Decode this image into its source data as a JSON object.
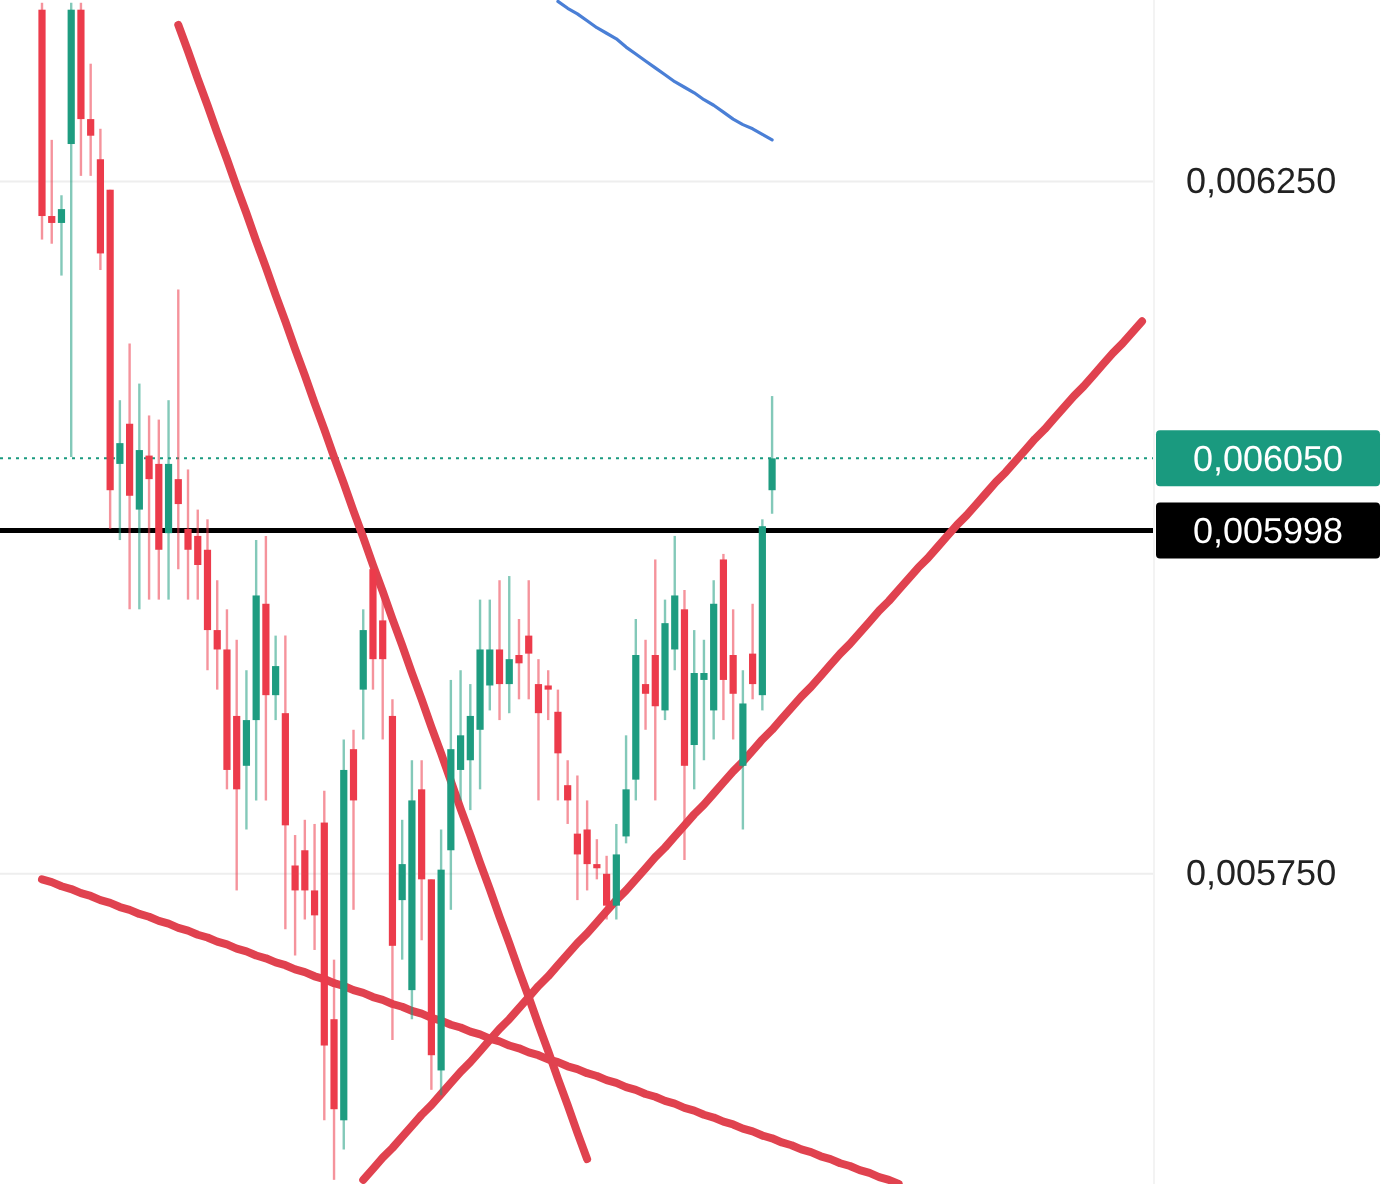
{
  "chart_data": {
    "type": "candlestick",
    "categories": [
      null,
      null,
      null,
      null,
      null,
      null,
      null,
      null,
      null,
      null,
      null,
      null,
      null,
      null,
      null,
      null,
      null,
      null,
      null,
      null,
      null,
      null,
      null,
      null,
      null,
      null,
      null,
      null,
      null,
      null,
      null,
      null,
      null,
      null,
      null,
      null,
      null,
      null,
      null,
      null,
      null,
      null,
      null,
      null,
      null,
      null,
      null,
      null,
      null,
      null,
      null,
      null,
      null,
      null,
      null,
      null,
      null,
      null,
      null,
      null,
      null,
      null,
      null,
      null,
      null,
      null,
      null,
      null,
      null,
      null,
      null,
      null,
      null,
      null,
      null,
      null,
      null,
      null,
      null,
      null,
      null,
      null,
      null,
      null,
      null,
      null,
      null,
      null,
      null,
      null,
      null,
      null,
      null,
      null,
      null,
      null,
      null,
      null,
      null,
      null,
      null,
      null,
      null,
      null,
      null,
      null,
      null,
      null,
      null,
      null,
      null,
      null,
      null,
      null
    ],
    "ohlc": [
      [
        0.006374,
        0.006379,
        0.006208,
        0.006225
      ],
      [
        0.006225,
        0.00628,
        0.006205,
        0.00622
      ],
      [
        0.00622,
        0.00624,
        0.006182,
        0.00623
      ],
      [
        0.006277,
        0.006379,
        0.006051,
        0.006374
      ],
      [
        0.006374,
        0.006379,
        0.006254,
        0.006295
      ],
      [
        0.006295,
        0.006335,
        0.006254,
        0.006283
      ],
      [
        0.006266,
        0.006288,
        0.006186,
        0.006198
      ],
      [
        0.006244,
        0.006244,
        0.005999,
        0.006027
      ],
      [
        0.006046,
        0.006092,
        0.005991,
        0.006061
      ],
      [
        0.006075,
        0.006133,
        0.005941,
        0.006023
      ],
      [
        0.006013,
        0.006104,
        0.005941,
        0.006056
      ],
      [
        0.006052,
        0.006081,
        0.005948,
        0.006035
      ],
      [
        0.006046,
        0.006078,
        0.005948,
        0.005984
      ],
      [
        0.005996,
        0.006092,
        0.005948,
        0.006046
      ],
      [
        0.006035,
        0.006172,
        0.00597,
        0.006017
      ],
      [
        0.005999,
        0.006042,
        0.005948,
        0.005984
      ],
      [
        0.005994,
        0.006013,
        0.005948,
        0.005973
      ],
      [
        0.005984,
        0.006006,
        0.005897,
        0.005926
      ],
      [
        0.005926,
        0.005962,
        0.005883,
        0.005912
      ],
      [
        0.005912,
        0.005941,
        0.005811,
        0.005825
      ],
      [
        0.005864,
        0.005919,
        0.005738,
        0.005811
      ],
      [
        0.005828,
        0.005897,
        0.005782,
        0.005861
      ],
      [
        0.005861,
        0.005991,
        0.005803,
        0.005951
      ],
      [
        0.005945,
        0.005994,
        0.005803,
        0.005879
      ],
      [
        0.005879,
        0.005922,
        0.005861,
        0.0059
      ],
      [
        0.005866,
        0.005922,
        0.00571,
        0.005785
      ],
      [
        0.005756,
        0.005778,
        0.005691,
        0.005738
      ],
      [
        0.005767,
        0.005789,
        0.005717,
        0.005738
      ],
      [
        0.005738,
        0.005786,
        0.005695,
        0.00572
      ],
      [
        0.005787,
        0.00581,
        0.005572,
        0.005626
      ],
      [
        0.005645,
        0.005688,
        0.005529,
        0.00558
      ],
      [
        0.005572,
        0.005847,
        0.005551,
        0.005825
      ],
      [
        0.00584,
        0.005854,
        0.005724,
        0.005803
      ],
      [
        0.005883,
        0.005941,
        0.005847,
        0.005926
      ],
      [
        0.00597,
        0.00597,
        0.005883,
        0.005905
      ],
      [
        0.005933,
        0.005948,
        0.005847,
        0.005905
      ],
      [
        0.005864,
        0.005876,
        0.00563,
        0.005698
      ],
      [
        0.005731,
        0.005789,
        0.005688,
        0.005757
      ],
      [
        0.005666,
        0.005832,
        0.005645,
        0.005803
      ],
      [
        0.005811,
        0.005832,
        0.005702,
        0.005746
      ],
      [
        0.005746,
        0.005746,
        0.005594,
        0.005619
      ],
      [
        0.005608,
        0.005782,
        0.00559,
        0.005753
      ],
      [
        0.005767,
        0.00589,
        0.005724,
        0.00584
      ],
      [
        0.005825,
        0.005897,
        0.005803,
        0.00585
      ],
      [
        0.005832,
        0.005887,
        0.005796,
        0.005864
      ],
      [
        0.005854,
        0.005948,
        0.005811,
        0.005912
      ],
      [
        0.005886,
        0.005948,
        0.005868,
        0.005912
      ],
      [
        0.005912,
        0.005962,
        0.005861,
        0.005887
      ],
      [
        0.005887,
        0.005965,
        0.005866,
        0.005905
      ],
      [
        0.005908,
        0.005934,
        0.005876,
        0.005902
      ],
      [
        0.005922,
        0.005962,
        0.005876,
        0.005909
      ],
      [
        0.005887,
        0.005905,
        0.005803,
        0.005866
      ],
      [
        0.005886,
        0.005897,
        0.005861,
        0.005883
      ],
      [
        0.005867,
        0.005883,
        0.005803,
        0.005837
      ],
      [
        0.005814,
        0.005832,
        0.005786,
        0.005803
      ],
      [
        0.005779,
        0.005821,
        0.005731,
        0.005764
      ],
      [
        0.005782,
        0.005803,
        0.005738,
        0.005757
      ],
      [
        0.005757,
        0.005775,
        0.005746,
        0.005754
      ],
      [
        0.00575,
        0.005763,
        0.005717,
        0.005727
      ],
      [
        0.005727,
        0.005786,
        0.005717,
        0.005764
      ],
      [
        0.005777,
        0.00585,
        0.005772,
        0.005811
      ],
      [
        0.005818,
        0.005934,
        0.005803,
        0.005908
      ],
      [
        0.005887,
        0.005919,
        0.005854,
        0.00588
      ],
      [
        0.005908,
        0.005977,
        0.005803,
        0.005871
      ],
      [
        0.005868,
        0.005948,
        0.005861,
        0.005931
      ],
      [
        0.005912,
        0.005994,
        0.005897,
        0.005951
      ],
      [
        0.005941,
        0.005955,
        0.00576,
        0.005828
      ],
      [
        0.005843,
        0.005926,
        0.005811,
        0.005895
      ],
      [
        0.00589,
        0.005919,
        0.005832,
        0.005895
      ],
      [
        0.005868,
        0.005962,
        0.005847,
        0.005945
      ],
      [
        0.005977,
        0.005981,
        0.005861,
        0.00589
      ],
      [
        0.005908,
        0.005941,
        0.005847,
        0.00588
      ],
      [
        0.005828,
        0.005897,
        0.005782,
        0.005873
      ],
      [
        0.005909,
        0.005945,
        0.005876,
        0.005887
      ],
      [
        0.005879,
        0.006006,
        0.005868,
        0.006001
      ],
      [
        0.006027,
        0.006095,
        0.00601,
        0.00605
      ],
      null,
      null,
      null,
      null,
      null,
      null,
      null,
      null,
      null,
      null,
      null,
      null,
      null,
      null,
      null,
      null,
      null,
      null,
      null,
      null,
      null,
      null,
      null,
      null,
      null,
      null,
      null,
      null,
      null,
      null,
      null,
      null,
      null,
      null,
      null,
      null,
      null,
      null
    ],
    "colors": [
      "#ec3b4b",
      "#ec3b4b",
      "#1e9c80",
      "#1e9c80",
      "#ec3b4b",
      "#ec3b4b",
      "#ec3b4b",
      "#ec3b4b",
      "#1e9c80",
      "#ec3b4b",
      "#1e9c80",
      "#ec3b4b",
      "#ec3b4b",
      "#1e9c80",
      "#ec3b4b",
      "#ec3b4b",
      "#ec3b4b",
      "#ec3b4b",
      "#ec3b4b",
      "#ec3b4b",
      "#ec3b4b",
      "#1e9c80",
      "#1e9c80",
      "#ec3b4b",
      "#1e9c80",
      "#ec3b4b",
      "#ec3b4b",
      "#ec3b4b",
      "#ec3b4b",
      "#ec3b4b",
      "#ec3b4b",
      "#1e9c80",
      "#ec3b4b",
      "#1e9c80",
      "#ec3b4b",
      "#ec3b4b",
      "#ec3b4b",
      "#1e9c80",
      "#1e9c80",
      "#ec3b4b",
      "#ec3b4b",
      "#1e9c80",
      "#1e9c80",
      "#1e9c80",
      "#1e9c80",
      "#1e9c80",
      "#1e9c80",
      "#ec3b4b",
      "#1e9c80",
      "#ec3b4b",
      "#ec3b4b",
      "#ec3b4b",
      "#ec3b4b",
      "#ec3b4b",
      "#ec3b4b",
      "#ec3b4b",
      "#ec3b4b",
      "#ec3b4b",
      "#ec3b4b",
      "#1e9c80",
      "#1e9c80",
      "#1e9c80",
      "#ec3b4b",
      "#ec3b4b",
      "#1e9c80",
      "#1e9c80",
      "#ec3b4b",
      "#1e9c80",
      "#1e9c80",
      "#1e9c80",
      "#ec3b4b",
      "#ec3b4b",
      "#1e9c80",
      "#ec3b4b",
      "#1e9c80",
      "#1e9c80",
      null,
      null,
      null,
      null,
      null,
      null,
      null,
      null,
      null,
      null,
      null,
      null,
      null,
      null,
      null,
      null,
      null,
      null,
      null,
      null,
      null,
      null,
      null,
      null,
      null,
      null,
      null,
      null,
      null,
      null,
      null,
      null,
      null,
      null,
      null,
      null,
      null,
      null
    ],
    "series": [
      {
        "type": "line",
        "color": "#4a7fd6",
        "values": [
          null,
          null,
          null,
          null,
          null,
          null,
          null,
          null,
          null,
          null,
          null,
          null,
          null,
          null,
          null,
          null,
          null,
          null,
          null,
          null,
          null,
          null,
          null,
          null,
          null,
          null,
          null,
          null,
          null,
          null,
          null,
          null,
          null,
          null,
          null,
          null,
          null,
          null,
          null,
          null,
          null,
          null,
          null,
          null,
          null,
          null,
          null,
          null,
          null,
          null,
          null,
          null,
          null,
          0.00638,
          0.006375,
          0.006371,
          0.006366,
          0.006361,
          0.006357,
          0.006353,
          0.006347,
          0.006342,
          0.006337,
          0.006332,
          0.006327,
          0.006322,
          0.006318,
          0.006314,
          0.006309,
          0.006305,
          0.0063,
          0.006295,
          0.006291,
          0.006288,
          0.006284,
          0.00628,
          null,
          null,
          null,
          null,
          null,
          null,
          null,
          null,
          null,
          null,
          null,
          null,
          null,
          null,
          null,
          null,
          null,
          null,
          null,
          null,
          null,
          null,
          null,
          null,
          null,
          null,
          null,
          null,
          null,
          null,
          null,
          null,
          null,
          null,
          null,
          null,
          null,
          null
        ]
      },
      {
        "type": "line",
        "color": "#e0424f",
        "values": [
          null,
          null,
          null,
          null,
          null,
          null,
          null,
          null,
          null,
          null,
          null,
          null,
          null,
          null,
          0.006363,
          0.006344,
          0.006324,
          0.006305,
          0.006285,
          0.006266,
          0.006246,
          0.006227,
          0.006207,
          0.006188,
          0.006168,
          0.006149,
          0.006129,
          0.00611,
          0.00609,
          0.006071,
          0.006051,
          0.006032,
          0.006012,
          0.005993,
          0.005973,
          0.005954,
          0.005934,
          0.005915,
          0.005895,
          0.005876,
          0.005856,
          0.005837,
          0.005817,
          0.005797,
          0.005778,
          0.005758,
          0.005739,
          0.005719,
          0.0057,
          0.00568,
          0.005661,
          0.005641,
          0.005622,
          0.005602,
          0.005583,
          0.005563,
          0.005544,
          null,
          null,
          null,
          null,
          null,
          null,
          null,
          null,
          null,
          null,
          null,
          null,
          null,
          null,
          null,
          null,
          null,
          null,
          null,
          null,
          null,
          null,
          null,
          null,
          null,
          null,
          null,
          null,
          null,
          null,
          null,
          null,
          null,
          null,
          null,
          null,
          null,
          null,
          null,
          null,
          null,
          null,
          null,
          null,
          null,
          null,
          null,
          null,
          null,
          null,
          null,
          null,
          null,
          null,
          null,
          null,
          null
        ]
      },
      {
        "type": "line",
        "color": "#e0424f",
        "values": [
          null,
          null,
          null,
          null,
          null,
          null,
          null,
          null,
          null,
          null,
          null,
          null,
          null,
          null,
          null,
          null,
          null,
          null,
          null,
          null,
          null,
          null,
          null,
          null,
          null,
          null,
          null,
          null,
          null,
          null,
          null,
          null,
          null,
          0.005529,
          0.005537,
          0.005545,
          0.005552,
          0.00556,
          0.005568,
          0.005576,
          0.005583,
          0.005591,
          0.005599,
          0.005607,
          0.005614,
          0.005622,
          0.00563,
          0.005638,
          0.005645,
          0.005653,
          0.005661,
          0.005669,
          0.005676,
          0.005684,
          0.005692,
          0.0057,
          0.005707,
          0.005715,
          0.005723,
          0.005731,
          0.005738,
          0.005746,
          0.005754,
          0.005762,
          0.005769,
          0.005777,
          0.005785,
          0.005793,
          0.0058,
          0.005808,
          0.005816,
          0.005824,
          0.005831,
          0.005839,
          0.005847,
          0.005854,
          0.005862,
          0.00587,
          0.005878,
          0.005885,
          0.005893,
          0.005901,
          0.005909,
          0.005916,
          0.005924,
          0.005932,
          0.00594,
          0.005947,
          0.005955,
          0.005963,
          0.005971,
          0.005978,
          0.005986,
          0.005994,
          0.006002,
          0.006009,
          0.006017,
          0.006025,
          0.006033,
          0.00604,
          0.006048,
          0.006056,
          0.006064,
          0.006071,
          0.006079,
          0.006087,
          0.006095,
          0.006102,
          0.00611,
          0.006118,
          0.006126,
          0.006133,
          0.006141,
          0.006149
        ]
      },
      {
        "type": "line",
        "color": "#e0424f",
        "values": [
          0.005746,
          0.005744,
          0.005741,
          0.005739,
          0.005736,
          0.005734,
          0.005731,
          0.005729,
          0.005726,
          0.005724,
          0.005721,
          0.005719,
          0.005716,
          0.005714,
          0.005711,
          0.005709,
          0.005706,
          0.005704,
          0.005701,
          0.005699,
          0.005696,
          0.005694,
          0.005691,
          0.005689,
          0.005686,
          0.005684,
          0.005681,
          0.005679,
          0.005676,
          0.005674,
          0.005671,
          0.005669,
          0.005666,
          0.005664,
          0.005661,
          0.005659,
          0.005656,
          0.005654,
          0.005651,
          0.005649,
          0.005646,
          0.005644,
          0.005641,
          0.005639,
          0.005636,
          0.005634,
          0.005631,
          0.005629,
          0.005626,
          0.005624,
          0.005621,
          0.005619,
          0.005616,
          0.005614,
          0.005611,
          0.005609,
          0.005606,
          0.005604,
          0.005601,
          0.005599,
          0.005596,
          0.005594,
          0.005591,
          0.005589,
          0.005586,
          0.005584,
          0.005581,
          0.005579,
          0.005576,
          0.005574,
          0.005571,
          0.005569,
          0.005566,
          0.005564,
          0.005561,
          0.005559,
          0.005556,
          0.005554,
          0.005551,
          0.005549,
          0.005546,
          0.005544,
          0.005541,
          0.005539,
          0.005536,
          0.005534,
          0.005531,
          0.005529,
          0.005526,
          null,
          null,
          null,
          null,
          null,
          null,
          null,
          null,
          null,
          null,
          null,
          null,
          null,
          null,
          null,
          null,
          null,
          null,
          null,
          null,
          null,
          null,
          null,
          null,
          null
        ]
      }
    ],
    "ylim": [
      0.005526,
      0.006381
    ],
    "yticks": [
      {
        "value": 0.00575,
        "label": "0,005750"
      },
      {
        "value": 0.00625,
        "label": "0,006250"
      }
    ],
    "tick_labels": "y",
    "grid": "y",
    "marker": "none",
    "ref_lines": [
      {
        "axis": "y",
        "value": 0.00605,
        "label": "0,006050",
        "color": "#1a9a7f",
        "line_style": "dotted"
      },
      {
        "axis": "y",
        "value": 0.005998,
        "label": "0,005998",
        "color": "#000000",
        "line_style": "solid"
      }
    ]
  }
}
